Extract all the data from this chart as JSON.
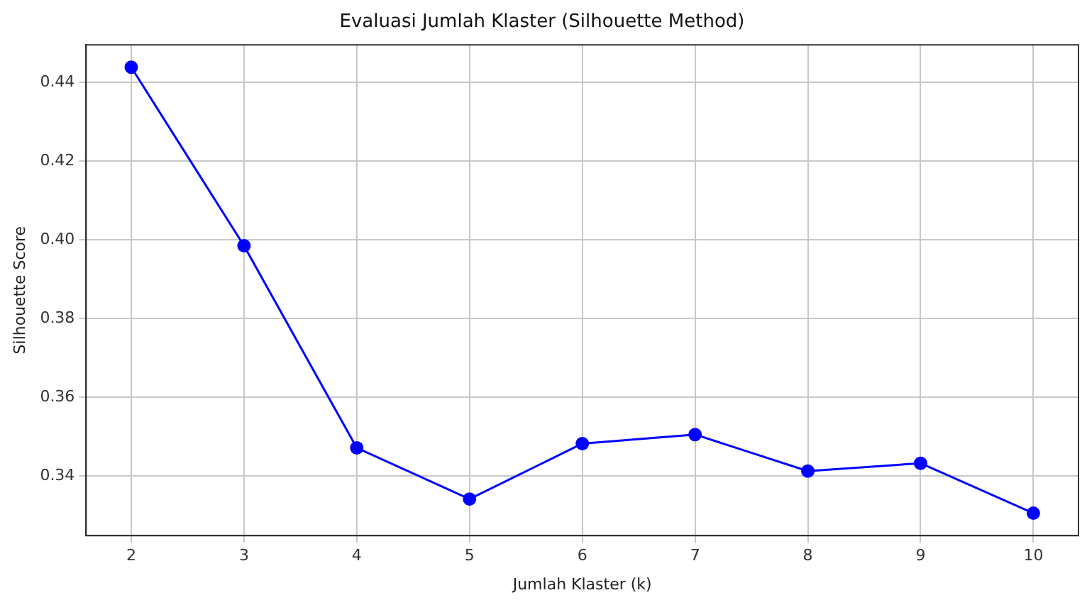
{
  "chart_data": {
    "type": "line",
    "title": "Evaluasi Jumlah Klaster (Silhouette Method)",
    "xlabel": "Jumlah Klaster (k)",
    "ylabel": "Silhouette Score",
    "x": [
      2,
      3,
      4,
      5,
      6,
      7,
      8,
      9,
      10
    ],
    "series": [
      {
        "color": "#0000ff",
        "values": [
          0.4439,
          0.3985,
          0.3471,
          0.3341,
          0.3482,
          0.3505,
          0.3412,
          0.3432,
          0.3305
        ]
      }
    ],
    "xlim": [
      1.6,
      10.4
    ],
    "ylim": [
      0.3248,
      0.4496
    ],
    "xticks": [
      2,
      3,
      4,
      5,
      6,
      7,
      8,
      9,
      10
    ],
    "yticks": [
      {
        "value": 0.34,
        "label": "0.34"
      },
      {
        "value": 0.36,
        "label": "0.36"
      },
      {
        "value": 0.38,
        "label": "0.38"
      },
      {
        "value": 0.4,
        "label": "0.40"
      },
      {
        "value": 0.42,
        "label": "0.42"
      },
      {
        "value": 0.44,
        "label": "0.44"
      }
    ],
    "grid": true,
    "legend": false,
    "marker": "circle",
    "line_style": "solid"
  }
}
